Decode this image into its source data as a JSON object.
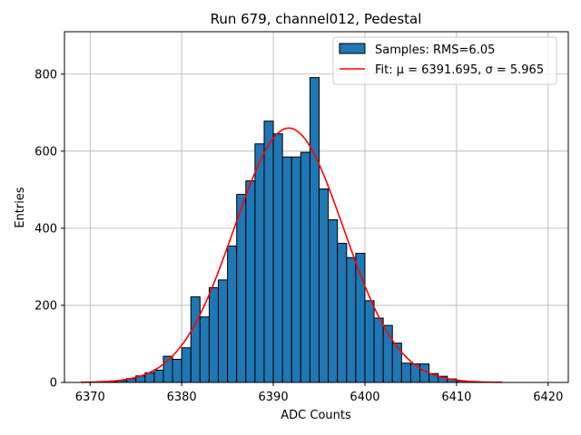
{
  "chart_data": {
    "type": "bar",
    "title": "Run 679, channel012, Pedestal",
    "xlabel": "ADC Counts",
    "ylabel": "Entries",
    "xlim": [
      6367.2,
      6422.2
    ],
    "ylim": [
      0,
      910
    ],
    "xticks": [
      6370,
      6380,
      6390,
      6400,
      6410,
      6420
    ],
    "yticks": [
      0,
      200,
      400,
      600,
      800
    ],
    "grid": true,
    "legend_position": "upper right",
    "bar_color": "#1f77b4",
    "fit_color": "#ff0000",
    "histogram": {
      "name": "Samples: RMS=6.05",
      "bin_width": 1,
      "bins": [
        {
          "left": 6372,
          "count": 2
        },
        {
          "left": 6373,
          "count": 5
        },
        {
          "left": 6374,
          "count": 10
        },
        {
          "left": 6375,
          "count": 17
        },
        {
          "left": 6376,
          "count": 25
        },
        {
          "left": 6377,
          "count": 32
        },
        {
          "left": 6378,
          "count": 68
        },
        {
          "left": 6379,
          "count": 60
        },
        {
          "left": 6380,
          "count": 90
        },
        {
          "left": 6381,
          "count": 222
        },
        {
          "left": 6382,
          "count": 170
        },
        {
          "left": 6383,
          "count": 246
        },
        {
          "left": 6384,
          "count": 266
        },
        {
          "left": 6385,
          "count": 354
        },
        {
          "left": 6386,
          "count": 488
        },
        {
          "left": 6387,
          "count": 523
        },
        {
          "left": 6388,
          "count": 619
        },
        {
          "left": 6389,
          "count": 678
        },
        {
          "left": 6390,
          "count": 645
        },
        {
          "left": 6391,
          "count": 585
        },
        {
          "left": 6392,
          "count": 585
        },
        {
          "left": 6393,
          "count": 597
        },
        {
          "left": 6394,
          "count": 791
        },
        {
          "left": 6395,
          "count": 502
        },
        {
          "left": 6396,
          "count": 422
        },
        {
          "left": 6397,
          "count": 361
        },
        {
          "left": 6398,
          "count": 324
        },
        {
          "left": 6399,
          "count": 335
        },
        {
          "left": 6400,
          "count": 212
        },
        {
          "left": 6401,
          "count": 167
        },
        {
          "left": 6402,
          "count": 148
        },
        {
          "left": 6403,
          "count": 102
        },
        {
          "left": 6404,
          "count": 50
        },
        {
          "left": 6405,
          "count": 48
        },
        {
          "left": 6406,
          "count": 48
        },
        {
          "left": 6407,
          "count": 23
        },
        {
          "left": 6408,
          "count": 16
        },
        {
          "left": 6409,
          "count": 9
        },
        {
          "left": 6410,
          "count": 4
        },
        {
          "left": 6411,
          "count": 2
        }
      ]
    },
    "fit": {
      "name": "Fit: μ = 6391.695, σ = 5.965",
      "mu": 6391.695,
      "sigma": 5.965,
      "amplitude": 660,
      "x_range": [
        6369,
        6415
      ]
    }
  }
}
